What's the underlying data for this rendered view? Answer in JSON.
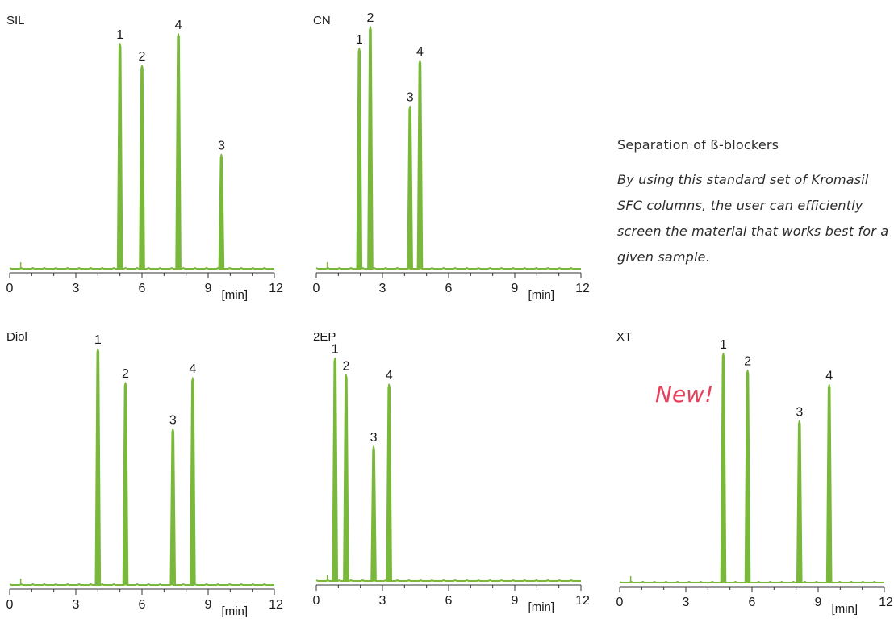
{
  "accent_color": "#79b83a",
  "sidebar": {
    "title": "Separation of ß-blockers",
    "body": "By using this standard set of Kromasil SFC columns, the user can efficiently screen the material that works best for a given sample."
  },
  "badge": "New!",
  "axis_unit": "[min]",
  "chart_data": [
    {
      "type": "line",
      "title": "SIL",
      "xlim": [
        0,
        12
      ],
      "xticks": [
        "0",
        "3",
        "6",
        "9",
        "12"
      ],
      "peaks": [
        {
          "label": "1",
          "x": 5.0,
          "y": 92
        },
        {
          "label": "2",
          "x": 6.0,
          "y": 83
        },
        {
          "label": "4",
          "x": 7.65,
          "y": 96
        },
        {
          "label": "3",
          "x": 9.6,
          "y": 46
        }
      ]
    },
    {
      "type": "line",
      "title": "CN",
      "xlim": [
        0,
        12
      ],
      "xticks": [
        "0",
        "3",
        "6",
        "9",
        "12"
      ],
      "peaks": [
        {
          "label": "1",
          "x": 1.95,
          "y": 90
        },
        {
          "label": "2",
          "x": 2.45,
          "y": 99
        },
        {
          "label": "3",
          "x": 4.25,
          "y": 66
        },
        {
          "label": "4",
          "x": 4.7,
          "y": 85
        }
      ]
    },
    {
      "type": "line",
      "title": "Diol",
      "xlim": [
        0,
        12
      ],
      "xticks": [
        "0",
        "3",
        "6",
        "9",
        "12"
      ],
      "peaks": [
        {
          "label": "1",
          "x": 4.0,
          "y": 96
        },
        {
          "label": "2",
          "x": 5.25,
          "y": 82
        },
        {
          "label": "3",
          "x": 7.4,
          "y": 63
        },
        {
          "label": "4",
          "x": 8.3,
          "y": 84
        }
      ]
    },
    {
      "type": "line",
      "title": "2EP",
      "xlim": [
        0,
        12
      ],
      "xticks": [
        "0",
        "3",
        "6",
        "9",
        "12"
      ],
      "peaks": [
        {
          "label": "1",
          "x": 0.85,
          "y": 92
        },
        {
          "label": "2",
          "x": 1.35,
          "y": 85
        },
        {
          "label": "3",
          "x": 2.6,
          "y": 55
        },
        {
          "label": "4",
          "x": 3.3,
          "y": 81
        }
      ]
    },
    {
      "type": "line",
      "title": "XT",
      "xlim": [
        0,
        12
      ],
      "xticks": [
        "0",
        "3",
        "6",
        "9",
        "12"
      ],
      "peaks": [
        {
          "label": "1",
          "x": 4.7,
          "y": 94
        },
        {
          "label": "2",
          "x": 5.8,
          "y": 87
        },
        {
          "label": "3",
          "x": 8.15,
          "y": 66
        },
        {
          "label": "4",
          "x": 9.5,
          "y": 81
        }
      ]
    }
  ]
}
